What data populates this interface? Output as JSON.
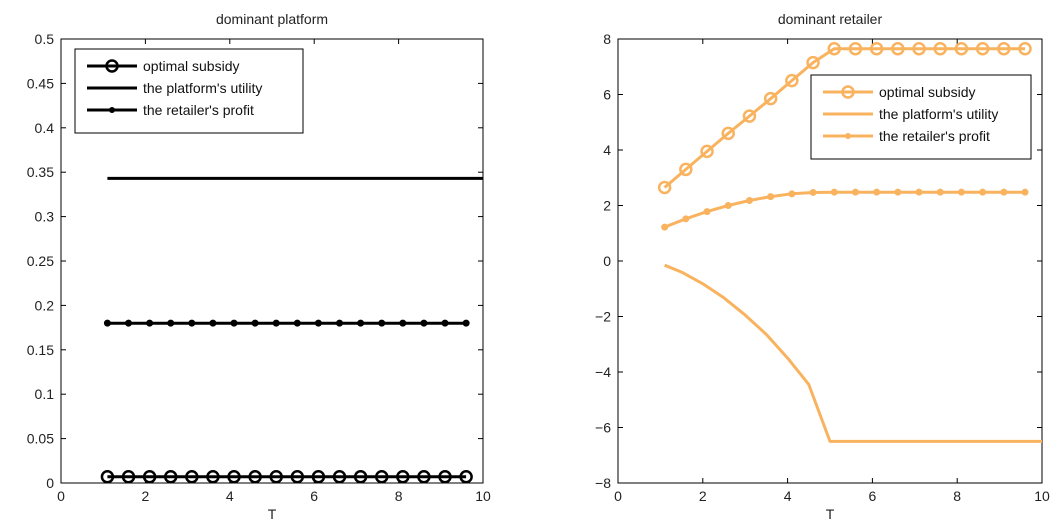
{
  "chart_data": [
    {
      "type": "line",
      "title": "dominant platform",
      "xlabel": "T",
      "ylabel": "",
      "xlim": [
        0,
        10
      ],
      "ylim": [
        0,
        0.5
      ],
      "xticks": [
        0,
        2,
        4,
        6,
        8,
        10
      ],
      "yticks": [
        0,
        0.05,
        0.1,
        0.15,
        0.2,
        0.25,
        0.3,
        0.35,
        0.4,
        0.45,
        0.5
      ],
      "xtick_labels": [
        "0",
        "2",
        "4",
        "6",
        "8",
        "10"
      ],
      "ytick_labels": [
        "0",
        "0.05",
        "0.1",
        "0.15",
        "0.2",
        "0.25",
        "0.3",
        "0.35",
        "0.4",
        "0.45",
        "0.5"
      ],
      "grid": false,
      "legend_position": "top-left",
      "color": "#000000",
      "series": [
        {
          "name": "optimal subsidy",
          "marker": "circle",
          "x": [
            1.1,
            1.6,
            2.1,
            2.6,
            3.1,
            3.6,
            4.1,
            4.6,
            5.1,
            5.6,
            6.1,
            6.6,
            7.1,
            7.6,
            8.1,
            8.6,
            9.1,
            9.6
          ],
          "y": [
            0.007,
            0.007,
            0.007,
            0.007,
            0.007,
            0.007,
            0.007,
            0.007,
            0.007,
            0.007,
            0.007,
            0.007,
            0.007,
            0.007,
            0.007,
            0.007,
            0.007,
            0.007
          ]
        },
        {
          "name": "the platform's utility",
          "marker": "none",
          "x": [
            1.1,
            10
          ],
          "y": [
            0.343,
            0.343
          ]
        },
        {
          "name": "the retailer's profit",
          "marker": "dot",
          "x": [
            1.1,
            1.6,
            2.1,
            2.6,
            3.1,
            3.6,
            4.1,
            4.6,
            5.1,
            5.6,
            6.1,
            6.6,
            7.1,
            7.6,
            8.1,
            8.6,
            9.1,
            9.6
          ],
          "y": [
            0.18,
            0.18,
            0.18,
            0.18,
            0.18,
            0.18,
            0.18,
            0.18,
            0.18,
            0.18,
            0.18,
            0.18,
            0.18,
            0.18,
            0.18,
            0.18,
            0.18,
            0.18
          ]
        }
      ]
    },
    {
      "type": "line",
      "title": "dominant retailer",
      "xlabel": "T",
      "ylabel": "",
      "xlim": [
        0,
        10
      ],
      "ylim": [
        -8,
        8
      ],
      "xticks": [
        0,
        2,
        4,
        6,
        8,
        10
      ],
      "yticks": [
        -8,
        -6,
        -4,
        -2,
        0,
        2,
        4,
        6,
        8
      ],
      "xtick_labels": [
        "0",
        "2",
        "4",
        "6",
        "8",
        "10"
      ],
      "ytick_labels": [
        "−8",
        "−6",
        "−4",
        "−2",
        "0",
        "2",
        "4",
        "6",
        "8"
      ],
      "grid": false,
      "legend_position": "top-right",
      "color": "#f9b35f",
      "series": [
        {
          "name": "optimal subsidy",
          "marker": "circle",
          "x": [
            1.1,
            1.6,
            2.1,
            2.6,
            3.1,
            3.6,
            4.1,
            4.6,
            5.1,
            5.6,
            6.1,
            6.6,
            7.1,
            7.6,
            8.1,
            8.6,
            9.1,
            9.6
          ],
          "y": [
            2.65,
            3.3,
            3.95,
            4.6,
            5.22,
            5.85,
            6.5,
            7.15,
            7.65,
            7.65,
            7.65,
            7.65,
            7.65,
            7.65,
            7.65,
            7.65,
            7.65,
            7.65
          ]
        },
        {
          "name": "the platform's utility",
          "marker": "none",
          "x": [
            1.1,
            1.5,
            2.0,
            2.5,
            3.0,
            3.5,
            4.0,
            4.5,
            5.0,
            6.0,
            7.0,
            8.0,
            9.0,
            10.0
          ],
          "y": [
            -0.15,
            -0.4,
            -0.82,
            -1.33,
            -1.95,
            -2.65,
            -3.5,
            -4.45,
            -6.5,
            -6.5,
            -6.5,
            -6.5,
            -6.5,
            -6.5
          ]
        },
        {
          "name": "the retailer's profit",
          "marker": "dot",
          "x": [
            1.1,
            1.6,
            2.1,
            2.6,
            3.1,
            3.6,
            4.1,
            4.6,
            5.1,
            5.6,
            6.1,
            6.6,
            7.1,
            7.6,
            8.1,
            8.6,
            9.1,
            9.6
          ],
          "y": [
            1.22,
            1.52,
            1.78,
            2.0,
            2.18,
            2.32,
            2.42,
            2.47,
            2.48,
            2.48,
            2.48,
            2.48,
            2.48,
            2.48,
            2.48,
            2.48,
            2.48,
            2.48
          ]
        }
      ]
    }
  ]
}
